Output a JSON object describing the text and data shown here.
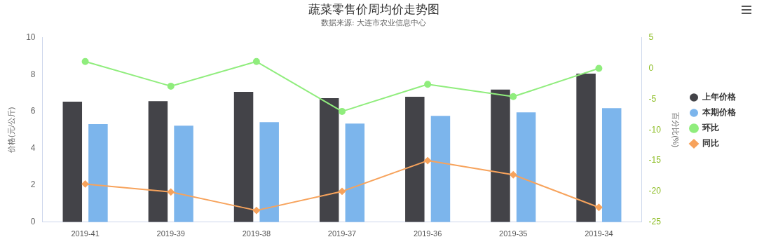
{
  "chart_data": {
    "type": "bar",
    "title": "蔬菜零售价周均价走势图",
    "subtitle": "数据来源: 大连市农业信息中心",
    "ylabel": "价格(元/公斤)",
    "y2label": "百分比(%)",
    "categories": [
      "2019-41",
      "2019-39",
      "2019-38",
      "2019-37",
      "2019-36",
      "2019-35",
      "2019-34"
    ],
    "series": [
      {
        "name": "上年价格",
        "color": "#434348",
        "values": [
          6.53,
          6.56,
          7.06,
          6.72,
          6.79,
          7.18,
          8.05
        ]
      },
      {
        "name": "本期价格",
        "color": "#7cb5ec",
        "values": [
          5.31,
          5.23,
          5.42,
          5.34,
          5.76,
          5.95,
          6.18
        ]
      },
      {
        "name": "环比",
        "type": "line",
        "axis": "y2",
        "marker": "circle",
        "color": "#90ed7d",
        "values": [
          1.1,
          -2.9,
          1.1,
          -7.0,
          -2.6,
          -4.6,
          0.0
        ]
      },
      {
        "name": "同比",
        "type": "line",
        "axis": "y2",
        "marker": "diamond",
        "color": "#f7a35c",
        "values": [
          -18.8,
          -20.1,
          -23.1,
          -20.0,
          -15.0,
          -17.3,
          -22.6
        ]
      }
    ],
    "ylim": [
      0,
      10
    ],
    "yticks": [
      0,
      2,
      4,
      6,
      8,
      10
    ],
    "y2lim": [
      -25,
      5
    ],
    "y2ticks": [
      -25,
      -20,
      -15,
      -10,
      -5,
      0,
      5
    ],
    "grid": false,
    "legend": "right"
  }
}
